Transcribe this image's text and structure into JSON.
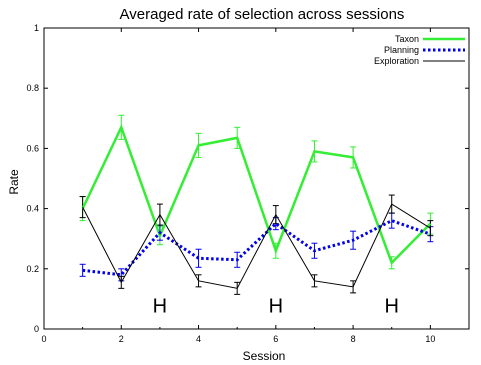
{
  "chart_data": {
    "type": "line",
    "title": "Averaged rate of selection across sessions",
    "xlabel": "Session",
    "ylabel": "Rate",
    "xlim": [
      0,
      11
    ],
    "ylim": [
      0,
      1
    ],
    "xticks": [
      0,
      2,
      4,
      6,
      8,
      10
    ],
    "yticks": [
      0,
      0.2,
      0.4,
      0.6,
      0.8,
      1
    ],
    "grid": false,
    "legend_position": "top-right",
    "x": [
      1,
      2,
      3,
      4,
      5,
      6,
      7,
      8,
      9,
      10
    ],
    "series": [
      {
        "name": "Taxon",
        "color": "#33ee33",
        "style": "solid",
        "values": [
          0.4,
          0.67,
          0.31,
          0.61,
          0.635,
          0.26,
          0.59,
          0.57,
          0.22,
          0.35
        ],
        "errors": [
          0.04,
          0.04,
          0.03,
          0.04,
          0.035,
          0.025,
          0.035,
          0.035,
          0.02,
          0.035
        ]
      },
      {
        "name": "Planning",
        "color": "#0000ee",
        "style": "dotted",
        "values": [
          0.195,
          0.18,
          0.32,
          0.235,
          0.23,
          0.35,
          0.26,
          0.295,
          0.36,
          0.315
        ],
        "errors": [
          0.02,
          0.02,
          0.025,
          0.03,
          0.025,
          0.02,
          0.025,
          0.03,
          0.025,
          0.025
        ]
      },
      {
        "name": "Exploration",
        "color": "#000000",
        "style": "solid",
        "values": [
          0.405,
          0.155,
          0.38,
          0.16,
          0.135,
          0.38,
          0.16,
          0.14,
          0.415,
          0.335
        ],
        "errors": [
          0.035,
          0.02,
          0.035,
          0.02,
          0.02,
          0.03,
          0.02,
          0.02,
          0.03,
          0.025
        ]
      }
    ],
    "annotations": [
      {
        "text": "H",
        "x": 3,
        "y": 0.055
      },
      {
        "text": "H",
        "x": 6,
        "y": 0.055
      },
      {
        "text": "H",
        "x": 9,
        "y": 0.055
      }
    ]
  }
}
